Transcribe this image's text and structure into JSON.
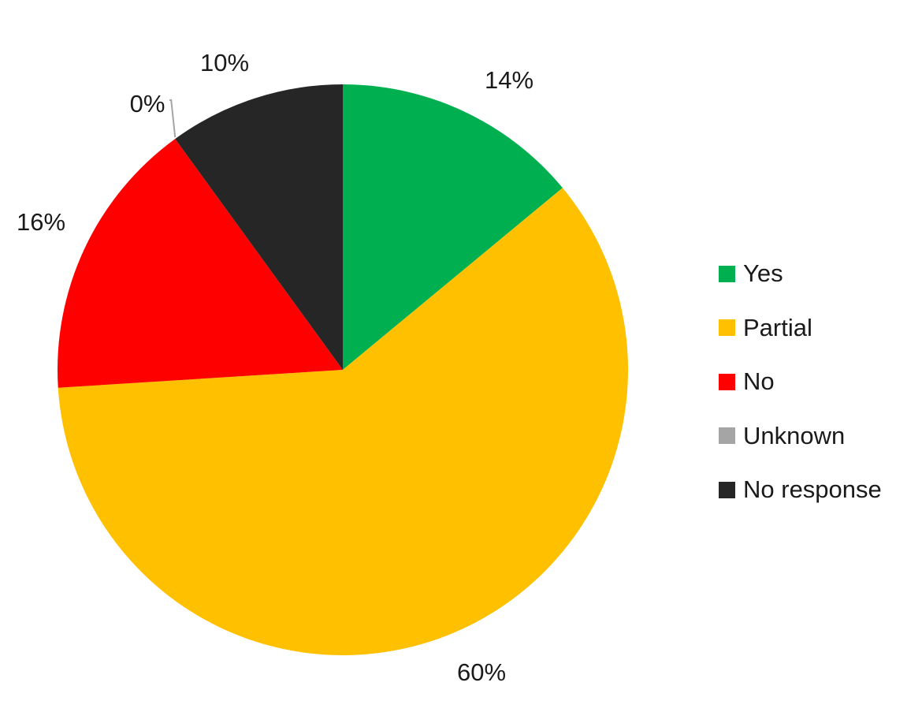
{
  "chart_data": {
    "type": "pie",
    "title": "",
    "slices": [
      {
        "label": "Yes",
        "value": 14,
        "display": "14%",
        "color": "#00B050"
      },
      {
        "label": "Partial",
        "value": 60,
        "display": "60%",
        "color": "#FFC000"
      },
      {
        "label": "No",
        "value": 16,
        "display": "16%",
        "color": "#FF0000"
      },
      {
        "label": "Unknown",
        "value": 0,
        "display": "0%",
        "color": "#A5A5A5"
      },
      {
        "label": "No response",
        "value": 10,
        "display": "10%",
        "color": "#262626"
      }
    ],
    "start_angle": "12 o'clock",
    "direction": "clockwise",
    "legend_position": "right"
  }
}
